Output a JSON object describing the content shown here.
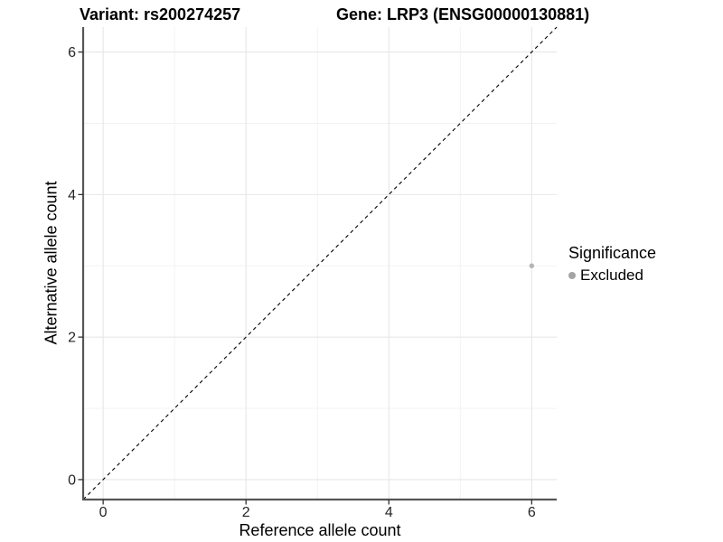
{
  "titles": {
    "left": "Variant: rs200274257",
    "right": "Gene: LRP3 (ENSG00000130881)"
  },
  "chart_data": {
    "type": "scatter",
    "title_left": "Variant: rs200274257",
    "title_right": "Gene: LRP3 (ENSG00000130881)",
    "xlabel": "Reference allele count",
    "ylabel": "Alternative allele count",
    "xlim": [
      -0.28,
      6.35
    ],
    "ylim": [
      -0.28,
      6.35
    ],
    "x_ticks": [
      0,
      2,
      4,
      6
    ],
    "y_ticks": [
      0,
      2,
      4,
      6
    ],
    "x_minor_gridlines": [
      1,
      3,
      5
    ],
    "y_minor_gridlines": [
      1,
      3,
      5
    ],
    "grid": "major and minor, light gray, white background",
    "reference_line": {
      "type": "identity y=x",
      "style": "dashed",
      "color": "#000000"
    },
    "series": [
      {
        "name": "Excluded",
        "color": "#b5b5b5",
        "points": [
          {
            "x": 6,
            "y": 3
          }
        ]
      }
    ],
    "legend": {
      "title": "Significance",
      "position": "right",
      "items": [
        {
          "label": "Excluded",
          "color": "#a4a4a4"
        }
      ]
    },
    "colors": {
      "grid_major": "#e7e7e7",
      "grid_minor": "#f2f2f2",
      "axis_line": "#565656",
      "tick_mark": "#333333",
      "tick_text": "#262626",
      "point": "#b5b5b5"
    }
  }
}
